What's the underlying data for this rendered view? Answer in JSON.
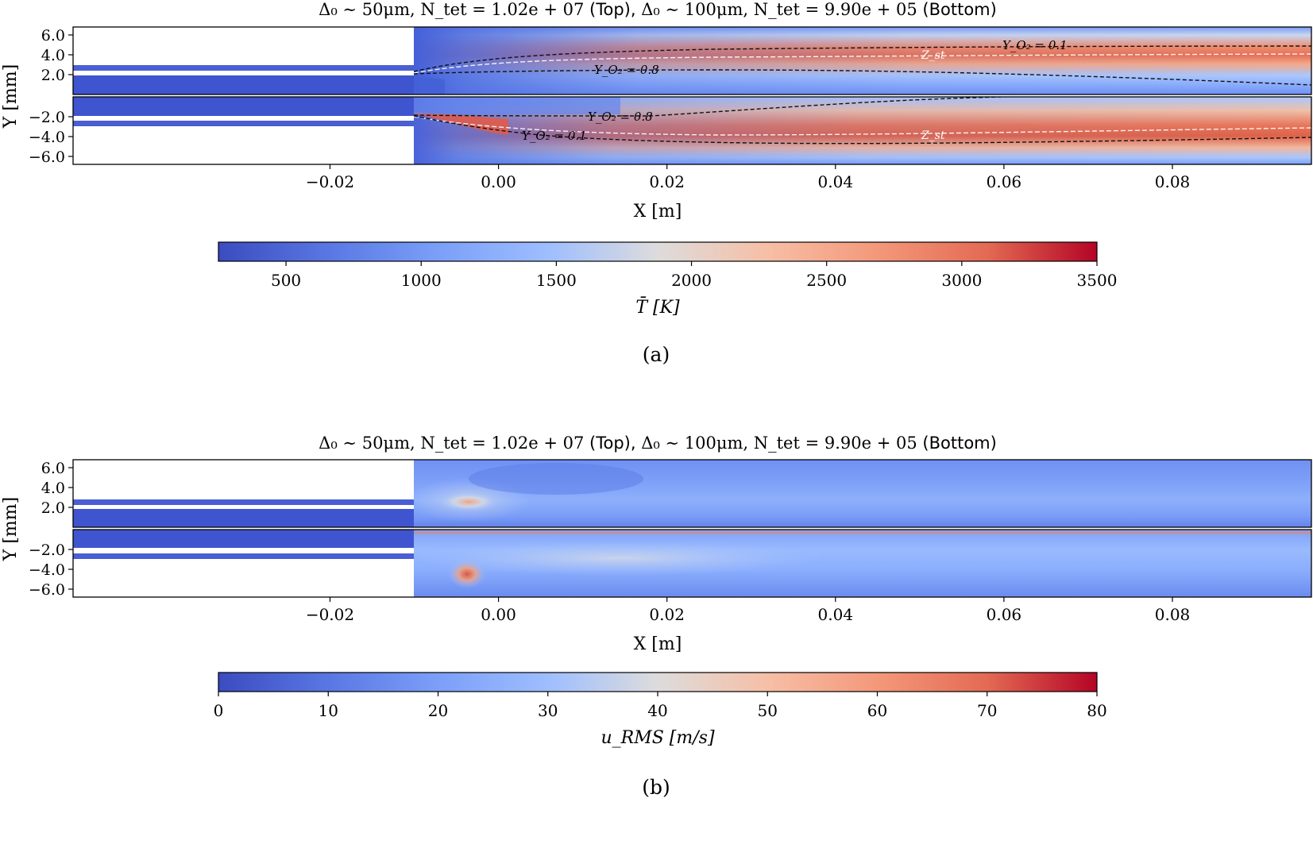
{
  "chart_data": [
    {
      "type": "heatmap",
      "panel_label": "(a)",
      "title": {
        "top_desc": "Δ₀ ∼ 50μm, N_tet = 1.02e + 07",
        "top_tag": "(Top),",
        "bottom_desc": "Δ₀ ∼ 100μm, N_tet = 9.90e + 05",
        "bottom_tag": "(Bottom)"
      },
      "xlabel": "X [m]",
      "ylabel": "Y [mm]",
      "xlim": [
        -0.0505,
        0.0965
      ],
      "x_ticks": [
        "−0.02",
        "0.00",
        "0.02",
        "0.04",
        "0.06",
        "0.08"
      ],
      "x_tick_values": [
        -0.02,
        0.0,
        0.02,
        0.04,
        0.06,
        0.08
      ],
      "top_ylim": [
        0.0,
        6.8
      ],
      "top_y_ticks": [
        "6.0",
        "4.0",
        "2.0"
      ],
      "top_y_tick_values": [
        6.0,
        4.0,
        2.0
      ],
      "bottom_ylim": [
        -6.8,
        0.0
      ],
      "bottom_y_ticks": [
        "−2.0",
        "−4.0",
        "−6.0"
      ],
      "bottom_y_tick_values": [
        -2.0,
        -4.0,
        -6.0
      ],
      "colorbar": {
        "label": "T̄ [K]",
        "range": [
          250,
          3500
        ],
        "ticks": [
          "500",
          "1000",
          "1500",
          "2000",
          "2500",
          "3000",
          "3500"
        ],
        "tick_values": [
          500,
          1000,
          1500,
          2000,
          2500,
          3000,
          3500
        ],
        "colormap": "coolwarm"
      },
      "contour_labels": {
        "yo2_top_lean": "Y_O₂ = 0.1",
        "yo2_top_rich": "Y_O₂ = 0.8",
        "zst_top": "Z_st",
        "yo2_bottom_rich": "Y_O₂ = 0.8",
        "yo2_bottom_lean": "Y_O₂ = 0.1",
        "zst_bottom": "Z_st"
      }
    },
    {
      "type": "heatmap",
      "panel_label": "(b)",
      "title": {
        "top_desc": "Δ₀ ∼ 50μm, N_tet = 1.02e + 07",
        "top_tag": "(Top),",
        "bottom_desc": "Δ₀ ∼ 100μm, N_tet = 9.90e + 05",
        "bottom_tag": "(Bottom)"
      },
      "xlabel": "X [m]",
      "ylabel": "Y [mm]",
      "xlim": [
        -0.0505,
        0.0965
      ],
      "x_ticks": [
        "−0.02",
        "0.00",
        "0.02",
        "0.04",
        "0.06",
        "0.08"
      ],
      "x_tick_values": [
        -0.02,
        0.0,
        0.02,
        0.04,
        0.06,
        0.08
      ],
      "top_ylim": [
        0.0,
        6.8
      ],
      "top_y_ticks": [
        "6.0",
        "4.0",
        "2.0"
      ],
      "top_y_tick_values": [
        6.0,
        4.0,
        2.0
      ],
      "bottom_ylim": [
        -6.8,
        0.0
      ],
      "bottom_y_ticks": [
        "−2.0",
        "−4.0",
        "−6.0"
      ],
      "bottom_y_tick_values": [
        -2.0,
        -4.0,
        -6.0
      ],
      "colorbar": {
        "label": "u_RMS [m/s]",
        "range": [
          0,
          80
        ],
        "ticks": [
          "0",
          "10",
          "20",
          "30",
          "40",
          "50",
          "60",
          "70",
          "80"
        ],
        "tick_values": [
          0,
          10,
          20,
          30,
          40,
          50,
          60,
          70,
          80
        ],
        "colormap": "coolwarm"
      }
    }
  ],
  "colors": {
    "cold": "#3b4cc0",
    "mid": "#dddddd",
    "hot": "#b40426",
    "injector": "#4a5fd4"
  }
}
